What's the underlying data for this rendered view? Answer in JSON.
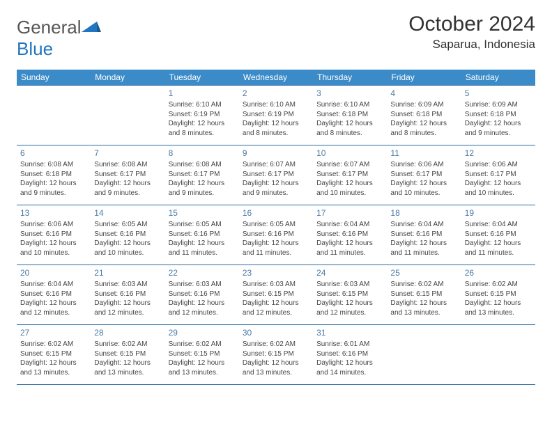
{
  "brand": {
    "general": "General",
    "blue": "Blue"
  },
  "title": "October 2024",
  "location": "Saparua, Indonesia",
  "colors": {
    "header_bg": "#3b8bc8",
    "header_text": "#ffffff",
    "border": "#2a6aa0",
    "daynum": "#4a7aa5",
    "logo_blue": "#2076c0",
    "body_text": "#444444",
    "background": "#ffffff"
  },
  "fonts": {
    "base_family": "Arial",
    "title_size_pt": 30,
    "location_size_pt": 17,
    "header_size_pt": 12,
    "cell_size_pt": 10
  },
  "weekdays": [
    "Sunday",
    "Monday",
    "Tuesday",
    "Wednesday",
    "Thursday",
    "Friday",
    "Saturday"
  ],
  "weeks": [
    [
      null,
      null,
      {
        "n": "1",
        "sunrise": "Sunrise: 6:10 AM",
        "sunset": "Sunset: 6:19 PM",
        "day1": "Daylight: 12 hours",
        "day2": "and 8 minutes."
      },
      {
        "n": "2",
        "sunrise": "Sunrise: 6:10 AM",
        "sunset": "Sunset: 6:19 PM",
        "day1": "Daylight: 12 hours",
        "day2": "and 8 minutes."
      },
      {
        "n": "3",
        "sunrise": "Sunrise: 6:10 AM",
        "sunset": "Sunset: 6:18 PM",
        "day1": "Daylight: 12 hours",
        "day2": "and 8 minutes."
      },
      {
        "n": "4",
        "sunrise": "Sunrise: 6:09 AM",
        "sunset": "Sunset: 6:18 PM",
        "day1": "Daylight: 12 hours",
        "day2": "and 8 minutes."
      },
      {
        "n": "5",
        "sunrise": "Sunrise: 6:09 AM",
        "sunset": "Sunset: 6:18 PM",
        "day1": "Daylight: 12 hours",
        "day2": "and 9 minutes."
      }
    ],
    [
      {
        "n": "6",
        "sunrise": "Sunrise: 6:08 AM",
        "sunset": "Sunset: 6:18 PM",
        "day1": "Daylight: 12 hours",
        "day2": "and 9 minutes."
      },
      {
        "n": "7",
        "sunrise": "Sunrise: 6:08 AM",
        "sunset": "Sunset: 6:17 PM",
        "day1": "Daylight: 12 hours",
        "day2": "and 9 minutes."
      },
      {
        "n": "8",
        "sunrise": "Sunrise: 6:08 AM",
        "sunset": "Sunset: 6:17 PM",
        "day1": "Daylight: 12 hours",
        "day2": "and 9 minutes."
      },
      {
        "n": "9",
        "sunrise": "Sunrise: 6:07 AM",
        "sunset": "Sunset: 6:17 PM",
        "day1": "Daylight: 12 hours",
        "day2": "and 9 minutes."
      },
      {
        "n": "10",
        "sunrise": "Sunrise: 6:07 AM",
        "sunset": "Sunset: 6:17 PM",
        "day1": "Daylight: 12 hours",
        "day2": "and 10 minutes."
      },
      {
        "n": "11",
        "sunrise": "Sunrise: 6:06 AM",
        "sunset": "Sunset: 6:17 PM",
        "day1": "Daylight: 12 hours",
        "day2": "and 10 minutes."
      },
      {
        "n": "12",
        "sunrise": "Sunrise: 6:06 AM",
        "sunset": "Sunset: 6:17 PM",
        "day1": "Daylight: 12 hours",
        "day2": "and 10 minutes."
      }
    ],
    [
      {
        "n": "13",
        "sunrise": "Sunrise: 6:06 AM",
        "sunset": "Sunset: 6:16 PM",
        "day1": "Daylight: 12 hours",
        "day2": "and 10 minutes."
      },
      {
        "n": "14",
        "sunrise": "Sunrise: 6:05 AM",
        "sunset": "Sunset: 6:16 PM",
        "day1": "Daylight: 12 hours",
        "day2": "and 10 minutes."
      },
      {
        "n": "15",
        "sunrise": "Sunrise: 6:05 AM",
        "sunset": "Sunset: 6:16 PM",
        "day1": "Daylight: 12 hours",
        "day2": "and 11 minutes."
      },
      {
        "n": "16",
        "sunrise": "Sunrise: 6:05 AM",
        "sunset": "Sunset: 6:16 PM",
        "day1": "Daylight: 12 hours",
        "day2": "and 11 minutes."
      },
      {
        "n": "17",
        "sunrise": "Sunrise: 6:04 AM",
        "sunset": "Sunset: 6:16 PM",
        "day1": "Daylight: 12 hours",
        "day2": "and 11 minutes."
      },
      {
        "n": "18",
        "sunrise": "Sunrise: 6:04 AM",
        "sunset": "Sunset: 6:16 PM",
        "day1": "Daylight: 12 hours",
        "day2": "and 11 minutes."
      },
      {
        "n": "19",
        "sunrise": "Sunrise: 6:04 AM",
        "sunset": "Sunset: 6:16 PM",
        "day1": "Daylight: 12 hours",
        "day2": "and 11 minutes."
      }
    ],
    [
      {
        "n": "20",
        "sunrise": "Sunrise: 6:04 AM",
        "sunset": "Sunset: 6:16 PM",
        "day1": "Daylight: 12 hours",
        "day2": "and 12 minutes."
      },
      {
        "n": "21",
        "sunrise": "Sunrise: 6:03 AM",
        "sunset": "Sunset: 6:16 PM",
        "day1": "Daylight: 12 hours",
        "day2": "and 12 minutes."
      },
      {
        "n": "22",
        "sunrise": "Sunrise: 6:03 AM",
        "sunset": "Sunset: 6:16 PM",
        "day1": "Daylight: 12 hours",
        "day2": "and 12 minutes."
      },
      {
        "n": "23",
        "sunrise": "Sunrise: 6:03 AM",
        "sunset": "Sunset: 6:15 PM",
        "day1": "Daylight: 12 hours",
        "day2": "and 12 minutes."
      },
      {
        "n": "24",
        "sunrise": "Sunrise: 6:03 AM",
        "sunset": "Sunset: 6:15 PM",
        "day1": "Daylight: 12 hours",
        "day2": "and 12 minutes."
      },
      {
        "n": "25",
        "sunrise": "Sunrise: 6:02 AM",
        "sunset": "Sunset: 6:15 PM",
        "day1": "Daylight: 12 hours",
        "day2": "and 13 minutes."
      },
      {
        "n": "26",
        "sunrise": "Sunrise: 6:02 AM",
        "sunset": "Sunset: 6:15 PM",
        "day1": "Daylight: 12 hours",
        "day2": "and 13 minutes."
      }
    ],
    [
      {
        "n": "27",
        "sunrise": "Sunrise: 6:02 AM",
        "sunset": "Sunset: 6:15 PM",
        "day1": "Daylight: 12 hours",
        "day2": "and 13 minutes."
      },
      {
        "n": "28",
        "sunrise": "Sunrise: 6:02 AM",
        "sunset": "Sunset: 6:15 PM",
        "day1": "Daylight: 12 hours",
        "day2": "and 13 minutes."
      },
      {
        "n": "29",
        "sunrise": "Sunrise: 6:02 AM",
        "sunset": "Sunset: 6:15 PM",
        "day1": "Daylight: 12 hours",
        "day2": "and 13 minutes."
      },
      {
        "n": "30",
        "sunrise": "Sunrise: 6:02 AM",
        "sunset": "Sunset: 6:15 PM",
        "day1": "Daylight: 12 hours",
        "day2": "and 13 minutes."
      },
      {
        "n": "31",
        "sunrise": "Sunrise: 6:01 AM",
        "sunset": "Sunset: 6:16 PM",
        "day1": "Daylight: 12 hours",
        "day2": "and 14 minutes."
      },
      null,
      null
    ]
  ]
}
